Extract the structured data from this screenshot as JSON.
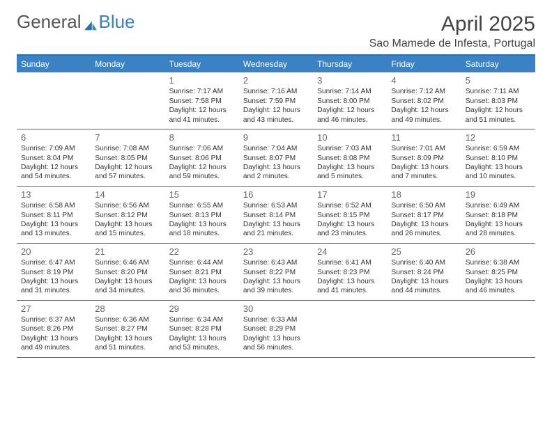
{
  "brand": {
    "word1": "General",
    "word2": "Blue"
  },
  "title": "April 2025",
  "location": "Sao Mamede de Infesta, Portugal",
  "header_bg": "#3a82c4",
  "border_color": "#2d6fad",
  "weekdays": [
    "Sunday",
    "Monday",
    "Tuesday",
    "Wednesday",
    "Thursday",
    "Friday",
    "Saturday"
  ],
  "weeks": [
    [
      null,
      null,
      {
        "n": "1",
        "sr": "7:17 AM",
        "ss": "7:58 PM",
        "dl": "12 hours and 41 minutes."
      },
      {
        "n": "2",
        "sr": "7:16 AM",
        "ss": "7:59 PM",
        "dl": "12 hours and 43 minutes."
      },
      {
        "n": "3",
        "sr": "7:14 AM",
        "ss": "8:00 PM",
        "dl": "12 hours and 46 minutes."
      },
      {
        "n": "4",
        "sr": "7:12 AM",
        "ss": "8:02 PM",
        "dl": "12 hours and 49 minutes."
      },
      {
        "n": "5",
        "sr": "7:11 AM",
        "ss": "8:03 PM",
        "dl": "12 hours and 51 minutes."
      }
    ],
    [
      {
        "n": "6",
        "sr": "7:09 AM",
        "ss": "8:04 PM",
        "dl": "12 hours and 54 minutes."
      },
      {
        "n": "7",
        "sr": "7:08 AM",
        "ss": "8:05 PM",
        "dl": "12 hours and 57 minutes."
      },
      {
        "n": "8",
        "sr": "7:06 AM",
        "ss": "8:06 PM",
        "dl": "12 hours and 59 minutes."
      },
      {
        "n": "9",
        "sr": "7:04 AM",
        "ss": "8:07 PM",
        "dl": "13 hours and 2 minutes."
      },
      {
        "n": "10",
        "sr": "7:03 AM",
        "ss": "8:08 PM",
        "dl": "13 hours and 5 minutes."
      },
      {
        "n": "11",
        "sr": "7:01 AM",
        "ss": "8:09 PM",
        "dl": "13 hours and 7 minutes."
      },
      {
        "n": "12",
        "sr": "6:59 AM",
        "ss": "8:10 PM",
        "dl": "13 hours and 10 minutes."
      }
    ],
    [
      {
        "n": "13",
        "sr": "6:58 AM",
        "ss": "8:11 PM",
        "dl": "13 hours and 13 minutes."
      },
      {
        "n": "14",
        "sr": "6:56 AM",
        "ss": "8:12 PM",
        "dl": "13 hours and 15 minutes."
      },
      {
        "n": "15",
        "sr": "6:55 AM",
        "ss": "8:13 PM",
        "dl": "13 hours and 18 minutes."
      },
      {
        "n": "16",
        "sr": "6:53 AM",
        "ss": "8:14 PM",
        "dl": "13 hours and 21 minutes."
      },
      {
        "n": "17",
        "sr": "6:52 AM",
        "ss": "8:15 PM",
        "dl": "13 hours and 23 minutes."
      },
      {
        "n": "18",
        "sr": "6:50 AM",
        "ss": "8:17 PM",
        "dl": "13 hours and 26 minutes."
      },
      {
        "n": "19",
        "sr": "6:49 AM",
        "ss": "8:18 PM",
        "dl": "13 hours and 28 minutes."
      }
    ],
    [
      {
        "n": "20",
        "sr": "6:47 AM",
        "ss": "8:19 PM",
        "dl": "13 hours and 31 minutes."
      },
      {
        "n": "21",
        "sr": "6:46 AM",
        "ss": "8:20 PM",
        "dl": "13 hours and 34 minutes."
      },
      {
        "n": "22",
        "sr": "6:44 AM",
        "ss": "8:21 PM",
        "dl": "13 hours and 36 minutes."
      },
      {
        "n": "23",
        "sr": "6:43 AM",
        "ss": "8:22 PM",
        "dl": "13 hours and 39 minutes."
      },
      {
        "n": "24",
        "sr": "6:41 AM",
        "ss": "8:23 PM",
        "dl": "13 hours and 41 minutes."
      },
      {
        "n": "25",
        "sr": "6:40 AM",
        "ss": "8:24 PM",
        "dl": "13 hours and 44 minutes."
      },
      {
        "n": "26",
        "sr": "6:38 AM",
        "ss": "8:25 PM",
        "dl": "13 hours and 46 minutes."
      }
    ],
    [
      {
        "n": "27",
        "sr": "6:37 AM",
        "ss": "8:26 PM",
        "dl": "13 hours and 49 minutes."
      },
      {
        "n": "28",
        "sr": "6:36 AM",
        "ss": "8:27 PM",
        "dl": "13 hours and 51 minutes."
      },
      {
        "n": "29",
        "sr": "6:34 AM",
        "ss": "8:28 PM",
        "dl": "13 hours and 53 minutes."
      },
      {
        "n": "30",
        "sr": "6:33 AM",
        "ss": "8:29 PM",
        "dl": "13 hours and 56 minutes."
      },
      null,
      null,
      null
    ]
  ],
  "labels": {
    "sunrise": "Sunrise:",
    "sunset": "Sunset:",
    "daylight": "Daylight:"
  }
}
